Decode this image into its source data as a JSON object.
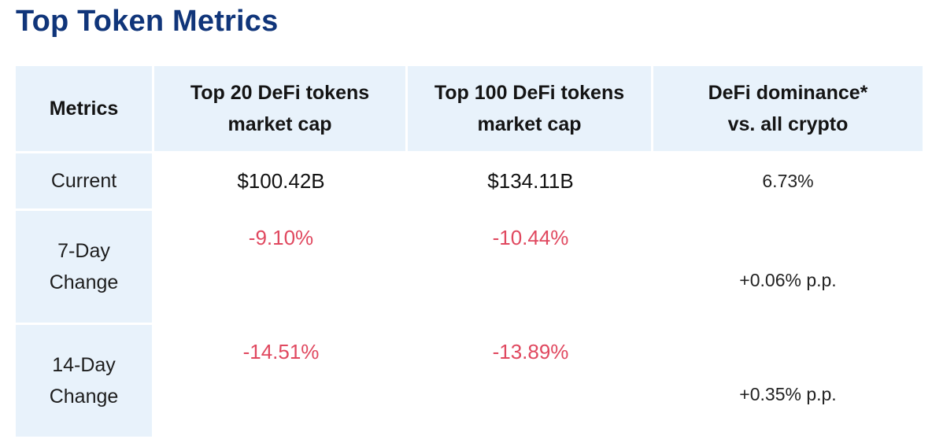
{
  "page": {
    "title": "Top Token Metrics"
  },
  "table": {
    "headers": [
      {
        "line1": "Metrics",
        "line2": ""
      },
      {
        "line1": "Top 20 DeFi tokens",
        "line2": "market cap"
      },
      {
        "line1": "Top 100 DeFi tokens",
        "line2": "market cap"
      },
      {
        "line1": "DeFi dominance*",
        "line2": "vs. all crypto"
      }
    ],
    "rows": [
      {
        "label_line1": "Current",
        "label_line2": "",
        "top20": "$100.42B",
        "top100": "$134.11B",
        "dominance": "6.73%"
      },
      {
        "label_line1": "7-Day",
        "label_line2": "Change",
        "top20": "-9.10%",
        "top100": "-10.44%",
        "dominance": "+0.06% p.p."
      },
      {
        "label_line1": "14-Day",
        "label_line2": "Change",
        "top20": "-14.51%",
        "top100": "-13.89%",
        "dominance": "+0.35% p.p."
      }
    ]
  },
  "colors": {
    "title": "#10357a",
    "header_bg": "#e8f2fb",
    "negative": "#e0485f",
    "positive": "#2bb09a"
  }
}
